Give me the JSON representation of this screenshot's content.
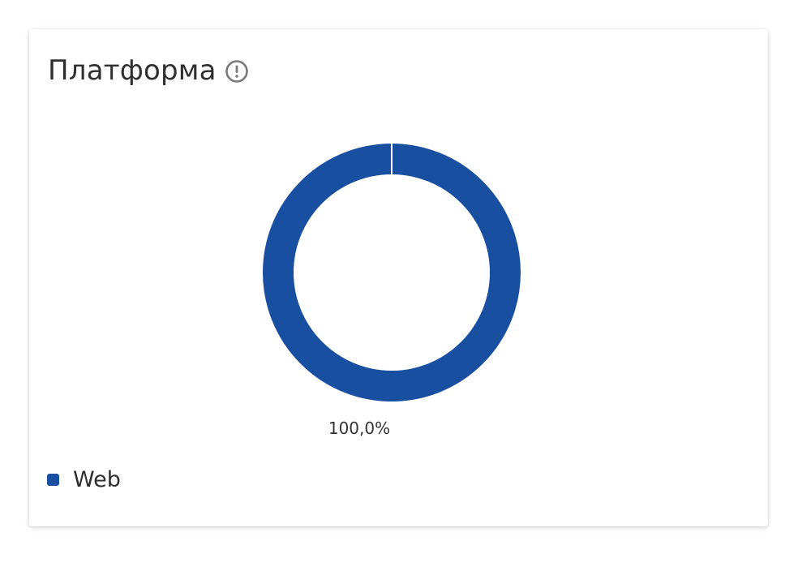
{
  "card": {
    "title": "Платформа",
    "info_icon": "info-circle-icon"
  },
  "chart_data": {
    "type": "pie",
    "donut": true,
    "categories": [
      "Web"
    ],
    "values": [
      100.0
    ],
    "data_labels": [
      "100,0%"
    ],
    "legend_placement": "bottom-left",
    "colors": [
      "#194fa0"
    ]
  },
  "legend": {
    "items": [
      {
        "label": "Web",
        "color": "#194fa0"
      }
    ]
  }
}
